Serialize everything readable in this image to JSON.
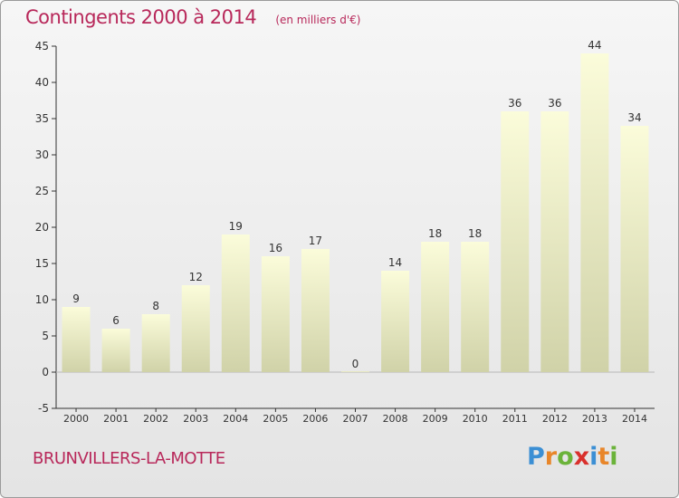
{
  "title": "Contingents 2000 à 2014",
  "subtitle": "(en milliers d'€)",
  "commune": "BRUNVILLERS-LA-MOTTE",
  "logo": {
    "text": "Proxiti",
    "letters": [
      {
        "ch": "P",
        "color": "#3b8fd4"
      },
      {
        "ch": "r",
        "color": "#e8862a"
      },
      {
        "ch": "o",
        "color": "#6bb33a"
      },
      {
        "ch": "x",
        "color": "#d9302c"
      },
      {
        "ch": "i",
        "color": "#3b8fd4"
      },
      {
        "ch": "t",
        "color": "#e8862a"
      },
      {
        "ch": "i",
        "color": "#6bb33a"
      }
    ]
  },
  "colors": {
    "title": "#b8285a",
    "bar_top": "#fbfcda",
    "bar_bottom": "#d0d2a8",
    "axis": "#333333",
    "grid": "#d8d8d8"
  },
  "chart_data": {
    "type": "bar",
    "categories": [
      "2000",
      "2001",
      "2002",
      "2003",
      "2004",
      "2005",
      "2006",
      "2007",
      "2008",
      "2009",
      "2010",
      "2011",
      "2012",
      "2013",
      "2014"
    ],
    "values": [
      9,
      6,
      8,
      12,
      19,
      16,
      17,
      0,
      14,
      18,
      18,
      36,
      36,
      44,
      34
    ],
    "ylim": [
      -5,
      45
    ],
    "yticks": [
      -5,
      0,
      5,
      10,
      15,
      20,
      25,
      30,
      35,
      40,
      45
    ],
    "grid": false,
    "legend": "none"
  }
}
